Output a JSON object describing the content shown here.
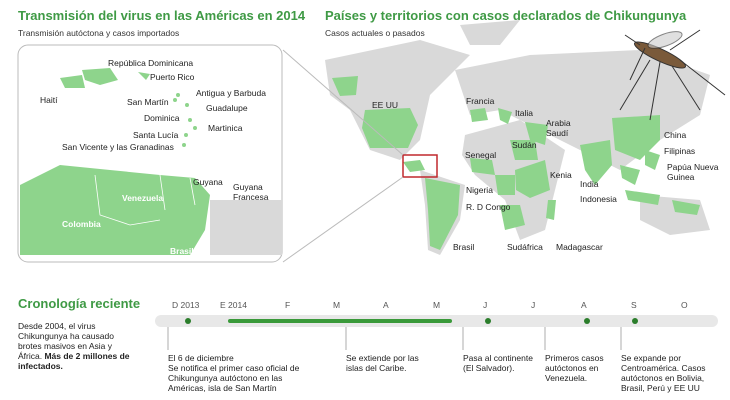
{
  "left_map": {
    "title": "Transmisión del virus en las Américas en 2014",
    "subtitle": "Transmisión autóctona y casos importados",
    "labels": [
      "República Dominicana",
      "Puerto Rico",
      "Haití",
      "San Martín",
      "Antigua y Barbuda",
      "Guadalupe",
      "Dominica",
      "Martinica",
      "Santa Lucía",
      "San Vicente y las Granadinas",
      "Guyana",
      "Guyana Francesa",
      "Venezuela",
      "Colombia",
      "Brasil"
    ]
  },
  "world_map": {
    "title": "Países y territorios con casos declarados de Chikungunya",
    "subtitle": "Casos actuales o pasados",
    "labels": [
      "EE UU",
      "Francia",
      "Italia",
      "Arabia Saudí",
      "Sudán",
      "Senegal",
      "Kenia",
      "Nigeria",
      "R. D Congo",
      "Brasil",
      "Sudáfrica",
      "Madagascar",
      "China",
      "Filipinas",
      "Papúa Nueva Guinea",
      "India",
      "Indonesia"
    ]
  },
  "timeline": {
    "title": "Cronología reciente",
    "intro": "Desde 2004, el virus Chikungunya ha causado brotes masivos en Asia y África.",
    "intro_bold": "Más de 2 millones de infectados.",
    "months": [
      "D 2013",
      "E 2014",
      "F",
      "M",
      "A",
      "M",
      "J",
      "J",
      "A",
      "S",
      "O"
    ],
    "events": [
      {
        "date": "El 6 de diciembre",
        "text": "Se notifica el primer caso oficial de Chikungunya autóctono en las Américas, isla de San Martín"
      },
      {
        "text": "Se extiende por las islas del Caribe."
      },
      {
        "text": "Pasa al continente (El Salvador)."
      },
      {
        "text": "Primeros casos autóctonos en Venezuela."
      },
      {
        "text": "Se expande por Centroamérica. Casos autóctonos en Bolivia, Brasil, Perú y EE UU"
      }
    ]
  }
}
